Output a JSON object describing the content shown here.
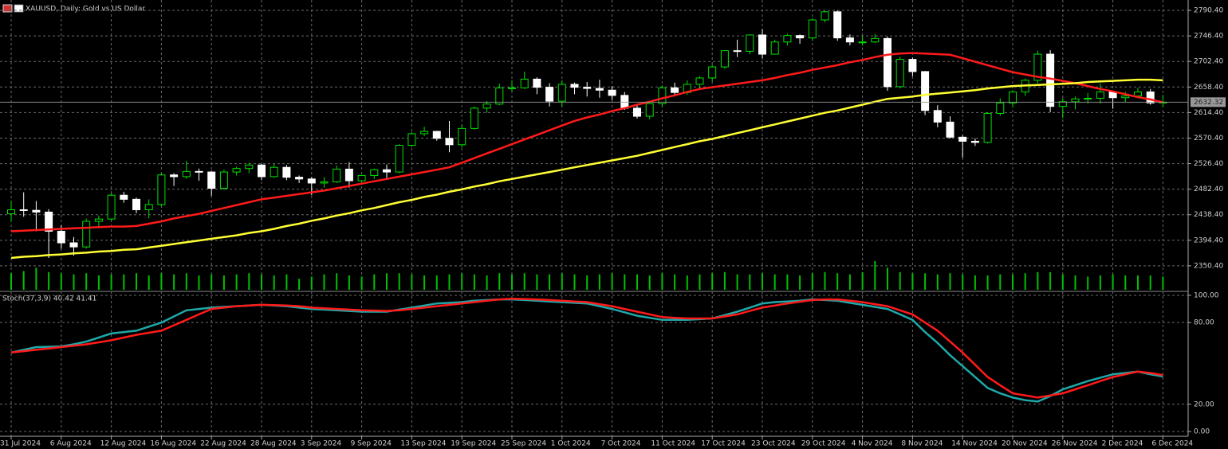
{
  "chart_data": [
    {
      "type": "candlestick",
      "title": "XAUUSD, Daily: Gold vs US Dollar",
      "x": [
        "31 Jul 2024",
        null,
        null,
        null,
        "6 Aug 2024",
        null,
        null,
        null,
        "12 Aug 2024",
        null,
        null,
        null,
        "16 Aug 2024",
        null,
        null,
        null,
        "22 Aug 2024",
        null,
        null,
        null,
        "28 Aug 2024",
        null,
        null,
        null,
        "3 Sep 2024",
        null,
        null,
        null,
        "9 Sep 2024",
        null,
        null,
        null,
        "13 Sep 2024",
        null,
        null,
        null,
        "19 Sep 2024",
        null,
        null,
        null,
        "25 Sep 2024",
        null,
        null,
        null,
        "1 Oct 2024",
        null,
        null,
        null,
        "7 Oct 2024",
        null,
        null,
        null,
        "11 Oct 2024",
        null,
        null,
        null,
        "17 Oct 2024",
        null,
        null,
        null,
        "23 Oct 2024",
        null,
        null,
        null,
        "29 Oct 2024",
        null,
        null,
        null,
        "4 Nov 2024",
        null,
        null,
        null,
        "8 Nov 2024",
        null,
        null,
        null,
        "14 Nov 2024",
        null,
        null,
        null,
        "20 Nov 2024",
        null,
        null,
        null,
        "26 Nov 2024",
        null,
        null,
        null,
        "2 Dec 2024",
        null,
        null,
        null,
        "6 Dec 2024"
      ],
      "open": [
        2440,
        2447,
        2446,
        2443,
        2410,
        2390,
        2383,
        2427,
        2431,
        2472,
        2465,
        2447,
        2456,
        2507,
        2504,
        2513,
        2512,
        2484,
        2512,
        2518,
        2524,
        2504,
        2520,
        2503,
        2500,
        2493,
        2495,
        2517,
        2497,
        2506,
        2516,
        2512,
        2558,
        2578,
        2582,
        2570,
        2559,
        2587,
        2622,
        2629,
        2657,
        2657,
        2672,
        2658,
        2634,
        2663,
        2658,
        2656,
        2653,
        2644,
        2622,
        2608,
        2630,
        2657,
        2649,
        2663,
        2674,
        2693,
        2721,
        2720,
        2748,
        2715,
        2736,
        2747,
        2743,
        2774,
        2788,
        2743,
        2736,
        2736,
        2742,
        2659,
        2706,
        2685,
        2618,
        2598,
        2572,
        2565,
        2563,
        2613,
        2631,
        2650,
        2670,
        2715,
        2625,
        2633,
        2638,
        2639,
        2650,
        2640,
        2643,
        2650,
        2631
      ],
      "high": [
        2462,
        2477,
        2462,
        2448,
        2420,
        2400,
        2432,
        2437,
        2476,
        2478,
        2468,
        2465,
        2510,
        2510,
        2531,
        2518,
        2514,
        2516,
        2521,
        2528,
        2526,
        2526,
        2524,
        2506,
        2503,
        2503,
        2523,
        2529,
        2507,
        2518,
        2525,
        2560,
        2581,
        2590,
        2583,
        2600,
        2593,
        2625,
        2634,
        2664,
        2670,
        2685,
        2675,
        2665,
        2670,
        2666,
        2667,
        2671,
        2660,
        2650,
        2627,
        2631,
        2661,
        2666,
        2670,
        2677,
        2697,
        2722,
        2740,
        2749,
        2758,
        2740,
        2750,
        2749,
        2777,
        2790,
        2790,
        2749,
        2746,
        2750,
        2745,
        2710,
        2709,
        2686,
        2627,
        2608,
        2575,
        2570,
        2615,
        2639,
        2653,
        2673,
        2721,
        2722,
        2639,
        2642,
        2648,
        2665,
        2652,
        2650,
        2657,
        2655,
        2645
      ],
      "low": [
        2426,
        2435,
        2410,
        2364,
        2380,
        2368,
        2380,
        2415,
        2428,
        2459,
        2441,
        2432,
        2453,
        2488,
        2500,
        2497,
        2471,
        2481,
        2506,
        2510,
        2498,
        2502,
        2498,
        2493,
        2472,
        2485,
        2493,
        2485,
        2494,
        2500,
        2500,
        2510,
        2555,
        2574,
        2566,
        2546,
        2554,
        2585,
        2614,
        2627,
        2651,
        2655,
        2646,
        2625,
        2625,
        2646,
        2642,
        2640,
        2636,
        2619,
        2604,
        2603,
        2625,
        2643,
        2645,
        2655,
        2668,
        2690,
        2710,
        2715,
        2708,
        2715,
        2730,
        2733,
        2738,
        2770,
        2738,
        2730,
        2730,
        2734,
        2652,
        2656,
        2677,
        2610,
        2589,
        2570,
        2537,
        2557,
        2561,
        2609,
        2623,
        2643,
        2665,
        2615,
        2605,
        2620,
        2630,
        2630,
        2621,
        2632,
        2639,
        2628,
        2624
      ],
      "close": [
        2447,
        2446,
        2443,
        2410,
        2390,
        2383,
        2427,
        2431,
        2472,
        2465,
        2447,
        2456,
        2507,
        2504,
        2513,
        2512,
        2484,
        2512,
        2518,
        2524,
        2504,
        2520,
        2503,
        2500,
        2493,
        2495,
        2517,
        2497,
        2506,
        2516,
        2512,
        2558,
        2578,
        2582,
        2570,
        2559,
        2587,
        2622,
        2629,
        2657,
        2657,
        2672,
        2658,
        2634,
        2663,
        2658,
        2656,
        2653,
        2644,
        2622,
        2608,
        2630,
        2657,
        2649,
        2663,
        2674,
        2693,
        2721,
        2720,
        2748,
        2715,
        2736,
        2747,
        2743,
        2774,
        2788,
        2743,
        2736,
        2736,
        2742,
        2659,
        2706,
        2685,
        2618,
        2598,
        2572,
        2565,
        2563,
        2613,
        2631,
        2650,
        2670,
        2715,
        2625,
        2633,
        2638,
        2639,
        2650,
        2640,
        2643,
        2650,
        2631,
        2632.32
      ],
      "bull_color": "#00e000",
      "bear_color": "#ffffff",
      "series": [
        {
          "color": "#ff1a1a",
          "values": [
            2410,
            2411,
            2412,
            2413,
            2414,
            2415,
            2416,
            2417,
            2418,
            2418,
            2419,
            2423,
            2427,
            2432,
            2436,
            2440,
            2445,
            2450,
            2455,
            2460,
            2465,
            2468,
            2471,
            2474,
            2477,
            2480,
            2484,
            2488,
            2492,
            2496,
            2500,
            2504,
            2508,
            2512,
            2516,
            2520,
            2528,
            2536,
            2544,
            2552,
            2560,
            2568,
            2576,
            2584,
            2592,
            2600,
            2606,
            2611,
            2617,
            2622,
            2628,
            2633,
            2639,
            2644,
            2650,
            2655,
            2658,
            2661,
            2664,
            2667,
            2670,
            2674,
            2679,
            2683,
            2688,
            2692,
            2696,
            2701,
            2705,
            2710,
            2714,
            2716,
            2717,
            2716,
            2715,
            2714,
            2708,
            2702,
            2696,
            2690,
            2684,
            2680,
            2676,
            2673,
            2669,
            2665,
            2660,
            2655,
            2651,
            2646,
            2641,
            2637,
            2632
          ]
        },
        {
          "color": "#ffff33",
          "values": [
            2364,
            2366,
            2367,
            2369,
            2370,
            2372,
            2373,
            2375,
            2376,
            2378,
            2379,
            2382,
            2385,
            2388,
            2391,
            2394,
            2397,
            2400,
            2403,
            2407,
            2410,
            2414,
            2419,
            2423,
            2428,
            2432,
            2437,
            2441,
            2446,
            2450,
            2455,
            2460,
            2464,
            2469,
            2473,
            2478,
            2482,
            2487,
            2491,
            2496,
            2500,
            2504,
            2508,
            2512,
            2516,
            2520,
            2524,
            2528,
            2532,
            2536,
            2540,
            2545,
            2550,
            2555,
            2560,
            2565,
            2569,
            2574,
            2579,
            2584,
            2589,
            2594,
            2599,
            2604,
            2609,
            2614,
            2618,
            2623,
            2628,
            2633,
            2638,
            2640,
            2642,
            2645,
            2647,
            2649,
            2651,
            2653,
            2656,
            2658,
            2660,
            2661,
            2662,
            2663,
            2664,
            2665,
            2667,
            2668,
            2669,
            2670,
            2671,
            2671,
            2670
          ]
        }
      ],
      "volume": {
        "color": "#00c000",
        "values": [
          150,
          170,
          200,
          160,
          150,
          140,
          150,
          130,
          140,
          140,
          150,
          130,
          150,
          140,
          150,
          130,
          140,
          130,
          140,
          150,
          140,
          130,
          140,
          100,
          120,
          140,
          150,
          130,
          120,
          140,
          150,
          150,
          140,
          130,
          130,
          140,
          150,
          140,
          130,
          150,
          140,
          150,
          140,
          140,
          150,
          140,
          130,
          140,
          150,
          140,
          140,
          130,
          150,
          140,
          130,
          140,
          150,
          160,
          140,
          140,
          150,
          140,
          140,
          130,
          150,
          160,
          150,
          140,
          160,
          260,
          200,
          160,
          150,
          150,
          140,
          150,
          140,
          130,
          130,
          140,
          140,
          150,
          160,
          160,
          140,
          130,
          120,
          130,
          140,
          130,
          130,
          130,
          120
        ]
      },
      "ylim": [
        2306.4,
        2808.3
      ],
      "yticks": [
        {
          "value": 2790.4,
          "label": "2790.40"
        },
        {
          "value": 2746.4,
          "label": "2746.40"
        },
        {
          "value": 2702.4,
          "label": "2702.40"
        },
        {
          "value": 2658.4,
          "label": "2658.40"
        },
        {
          "value": 2614.4,
          "label": "2614.40"
        },
        {
          "value": 2570.4,
          "label": "2570.40"
        },
        {
          "value": 2526.4,
          "label": "2526.40"
        },
        {
          "value": 2482.4,
          "label": "2482.40"
        },
        {
          "value": 2438.4,
          "label": "2438.40"
        },
        {
          "value": 2394.4,
          "label": "2394.40"
        },
        {
          "value": 2350.4,
          "label": "2350.40"
        }
      ],
      "current_price": {
        "value": 2632.32,
        "label": "2632.32"
      },
      "grid": true
    },
    {
      "type": "line",
      "title": "Stoch(37,3,9) 40.42 41.41",
      "series": [
        {
          "color": "#20a8a8",
          "values": [
            58,
            60,
            62,
            62.2,
            62.5,
            64,
            66,
            69,
            72,
            73,
            74,
            77,
            80,
            84.5,
            89,
            90,
            91,
            91.5,
            92,
            92.5,
            93,
            92.5,
            92,
            91,
            90,
            89.5,
            89,
            88.5,
            88,
            88,
            88,
            89.5,
            91,
            92.5,
            94,
            94.5,
            95,
            96,
            96.5,
            97,
            97,
            96.5,
            96,
            95.5,
            95,
            94.5,
            94,
            92,
            90,
            87.5,
            85,
            83.5,
            82,
            82,
            82,
            82.5,
            83,
            85.5,
            88,
            91,
            94,
            95,
            95.5,
            96,
            97,
            96.5,
            96,
            94.5,
            93,
            91.5,
            90,
            86,
            82,
            73,
            65,
            56,
            48,
            40,
            32,
            28,
            25,
            23,
            22,
            26,
            31,
            34,
            37,
            39.5,
            42,
            43,
            44,
            42,
            40.42
          ]
        },
        {
          "color": "#ff1a1a",
          "values": [
            58,
            59,
            60,
            61,
            62,
            63,
            64,
            65.5,
            67,
            69,
            71,
            72.5,
            74,
            78,
            82,
            86,
            90,
            91,
            92,
            92.5,
            93,
            92.8,
            92.5,
            92,
            91,
            90.5,
            90,
            89.5,
            89,
            88.8,
            88.5,
            89,
            90,
            91,
            92,
            93,
            94,
            95,
            96,
            97,
            97.5,
            97.3,
            97,
            96.5,
            96,
            95.5,
            95,
            93.5,
            92,
            90,
            88,
            86,
            84,
            83.5,
            83,
            83,
            83,
            84.5,
            86,
            88.5,
            91,
            92.5,
            94,
            95.3,
            96.5,
            97,
            97,
            96,
            95,
            93.5,
            92,
            89,
            86,
            80,
            74,
            66,
            58,
            49,
            40,
            34,
            28,
            26.5,
            25,
            26.5,
            28,
            31,
            34,
            37,
            40,
            42,
            44,
            43,
            41.41
          ]
        }
      ],
      "ylim": [
        -3.5,
        102.9
      ],
      "yticks": [
        {
          "value": 100,
          "label": "100.00"
        },
        {
          "value": 80,
          "label": "80.00"
        },
        {
          "value": 20,
          "label": "20.00"
        },
        {
          "value": 0,
          "label": "0.00"
        }
      ],
      "grid": true
    }
  ]
}
